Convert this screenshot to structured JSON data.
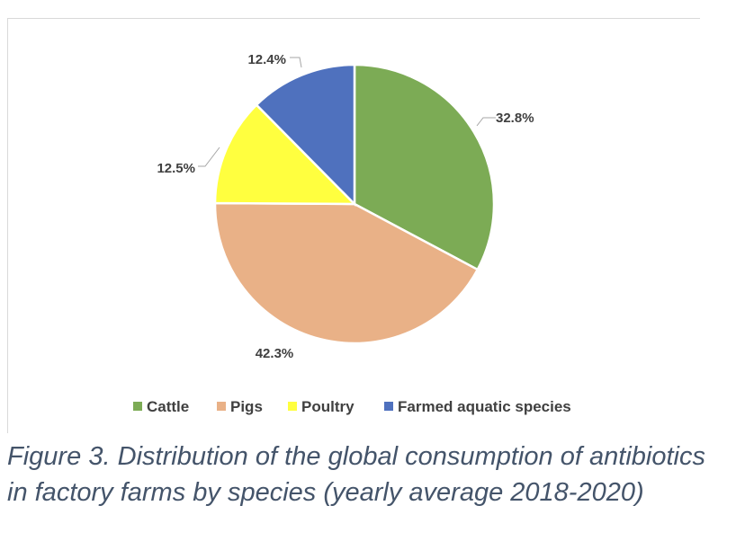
{
  "chart_data": {
    "type": "pie",
    "categories": [
      "Cattle",
      "Pigs",
      "Poultry",
      "Farmed aquatic species"
    ],
    "values": [
      32.8,
      42.3,
      12.5,
      12.4
    ],
    "data_labels": [
      "32.8%",
      "42.3%",
      "12.5%",
      "12.4%"
    ],
    "colors": [
      "#7cab55",
      "#e9b187",
      "#ffff3f",
      "#4f71be"
    ],
    "legend_position": "bottom",
    "start_angle_deg": 0,
    "direction": "clockwise"
  },
  "caption": "Figure 3. Distribution of the global consumption of antibiotics in factory farms by species (yearly average 2018-2020)"
}
